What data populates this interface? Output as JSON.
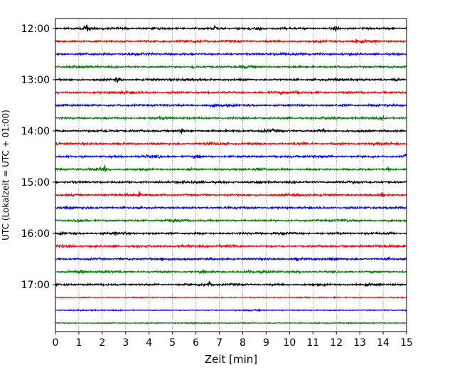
{
  "chart_data": {
    "type": "line",
    "chart_kind": "helicorder (seismogram drum plot)",
    "title": "",
    "xlabel": "Zeit  [min]",
    "ylabel": "UTC (Lokalzeit = UTC + 01:00)",
    "xlim": [
      0,
      15
    ],
    "x_ticks": [
      "0",
      "1",
      "2",
      "3",
      "4",
      "5",
      "6",
      "7",
      "8",
      "9",
      "10",
      "11",
      "12",
      "13",
      "14",
      "15"
    ],
    "y_tick_labels": [
      "12:00",
      "13:00",
      "14:00",
      "15:00",
      "16:00",
      "17:00"
    ],
    "minutes_per_trace": 15,
    "trace_count": 24,
    "color_cycle": [
      "#000000",
      "#ff0000",
      "#0000ff",
      "#008000"
    ],
    "vertical_grid": "dotted, every minute",
    "horizontal_grid": false,
    "legend": "none",
    "events": [
      {
        "trace": 0,
        "minute": 1.35,
        "amp": 1.0
      },
      {
        "trace": 0,
        "minute": 6.8,
        "amp": 0.9
      },
      {
        "trace": 0,
        "minute": 12.0,
        "amp": 1.0
      },
      {
        "trace": 1,
        "minute": 12.85,
        "amp": 0.6
      },
      {
        "trace": 2,
        "minute": 9.75,
        "amp": 0.8
      },
      {
        "trace": 3,
        "minute": 5.9,
        "amp": 0.7
      },
      {
        "trace": 4,
        "minute": 2.65,
        "amp": 0.9
      },
      {
        "trace": 4,
        "minute": 14.55,
        "amp": 1.0
      },
      {
        "trace": 5,
        "minute": 10.3,
        "amp": 0.8
      },
      {
        "trace": 6,
        "minute": 6.85,
        "amp": 0.5
      },
      {
        "trace": 7,
        "minute": 14.0,
        "amp": 0.8
      },
      {
        "trace": 8,
        "minute": 5.4,
        "amp": 0.7
      },
      {
        "trace": 8,
        "minute": 11.4,
        "amp": 1.0
      },
      {
        "trace": 9,
        "minute": 10.6,
        "amp": 0.6
      },
      {
        "trace": 10,
        "minute": 6.1,
        "amp": 0.8
      },
      {
        "trace": 10,
        "minute": 14.95,
        "amp": 0.6
      },
      {
        "trace": 11,
        "minute": 2.1,
        "amp": 0.9
      },
      {
        "trace": 11,
        "minute": 14.2,
        "amp": 0.7
      },
      {
        "trace": 12,
        "minute": 8.7,
        "amp": 0.7
      },
      {
        "trace": 13,
        "minute": 3.55,
        "amp": 0.7
      },
      {
        "trace": 13,
        "minute": 13.95,
        "amp": 0.6
      },
      {
        "trace": 15,
        "minute": 1.0,
        "amp": 0.7
      },
      {
        "trace": 16,
        "minute": 0.3,
        "amp": 0.5
      },
      {
        "trace": 16,
        "minute": 14.3,
        "amp": 0.5
      },
      {
        "trace": 18,
        "minute": 10.35,
        "amp": 0.6
      },
      {
        "trace": 19,
        "minute": 1.1,
        "amp": 0.6
      },
      {
        "trace": 19,
        "minute": 6.3,
        "amp": 0.6
      },
      {
        "trace": 19,
        "minute": 8.3,
        "amp": 0.6
      },
      {
        "trace": 20,
        "minute": 6.55,
        "amp": 0.9
      }
    ]
  }
}
